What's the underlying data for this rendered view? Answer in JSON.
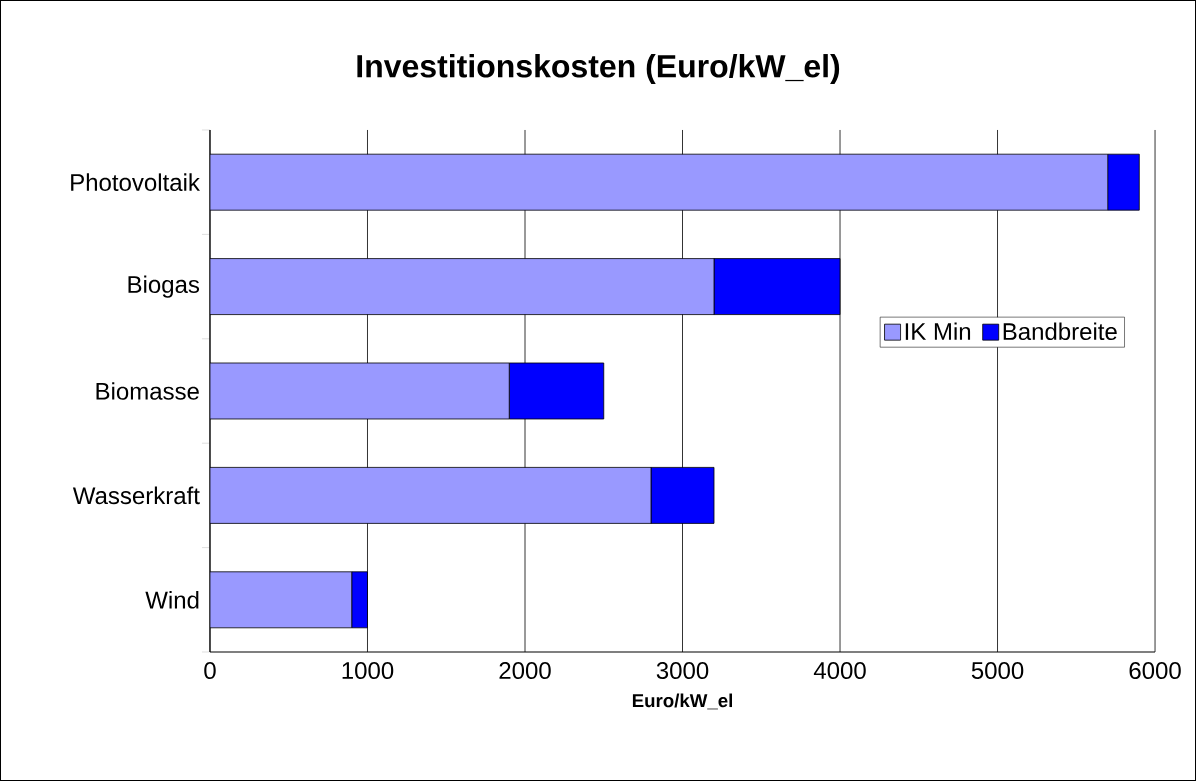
{
  "chart_data": {
    "type": "bar",
    "orientation": "horizontal",
    "stacked": true,
    "title": "Investitionskosten (Euro/kW_el)",
    "xlabel": "Euro/kW_el",
    "categories": [
      "Photovoltaik",
      "Biogas",
      "Biomasse",
      "Wasserkraft",
      "Wind"
    ],
    "series": [
      {
        "name": "IK Min",
        "color": "#9999ff",
        "values": [
          5700,
          3200,
          1900,
          2800,
          900
        ]
      },
      {
        "name": "Bandbreite",
        "color": "#0000ff",
        "values": [
          200,
          800,
          600,
          400,
          100
        ]
      }
    ],
    "xlim": [
      0,
      6000
    ],
    "xticks": [
      0,
      1000,
      2000,
      3000,
      4000,
      5000,
      6000
    ],
    "grid": "x",
    "legend": "right"
  }
}
